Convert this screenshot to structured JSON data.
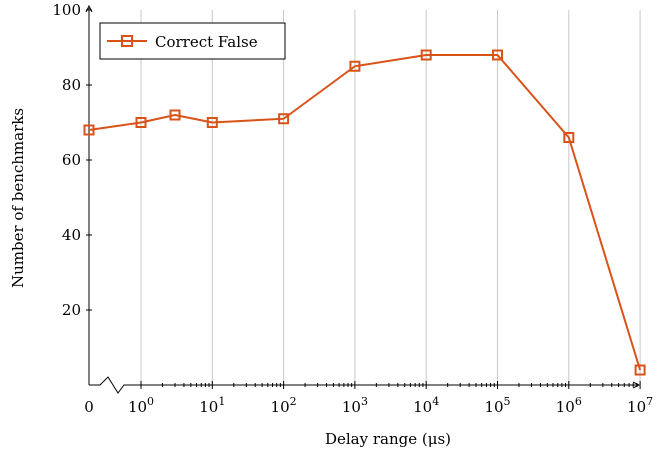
{
  "chart_data": {
    "type": "line",
    "xlabel": "Delay range (μs)",
    "ylabel": "Number of benchmarks",
    "ylim": [
      0,
      100
    ],
    "y_ticks": [
      20,
      40,
      60,
      80,
      100
    ],
    "x_scale": "log with broken axis at 0",
    "x_tick_labels": [
      {
        "base": "0",
        "exp": ""
      },
      {
        "base": "10",
        "exp": "0"
      },
      {
        "base": "10",
        "exp": "1"
      },
      {
        "base": "10",
        "exp": "2"
      },
      {
        "base": "10",
        "exp": "3"
      },
      {
        "base": "10",
        "exp": "4"
      },
      {
        "base": "10",
        "exp": "5"
      },
      {
        "base": "10",
        "exp": "6"
      },
      {
        "base": "10",
        "exp": "7"
      }
    ],
    "grid": "vertical major",
    "legend_position": "top-left",
    "series": [
      {
        "name": "Correct False",
        "color": "#d95319",
        "marker": "square",
        "x": [
          0,
          1,
          3,
          10,
          100,
          1000,
          10000,
          100000,
          1000000,
          10000000
        ],
        "y": [
          68,
          70,
          72,
          70,
          71,
          85,
          88,
          88,
          66,
          4
        ]
      }
    ]
  }
}
